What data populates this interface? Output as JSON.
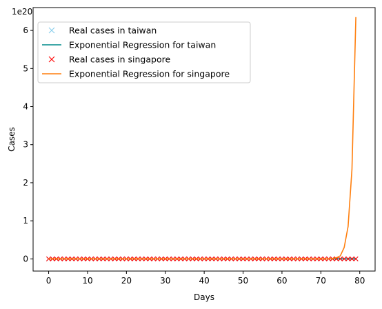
{
  "chart_data": {
    "type": "line",
    "title": "",
    "xlabel": "Days",
    "ylabel": "Cases",
    "offset_text": "1e20",
    "xlim": [
      -4,
      83.95
    ],
    "ylim": [
      -0.32,
      6.6
    ],
    "x_ticks": [
      0,
      10,
      20,
      30,
      40,
      50,
      60,
      70,
      80
    ],
    "y_ticks": [
      0,
      1,
      2,
      3,
      4,
      5,
      6
    ],
    "grid": false,
    "legend_position": "top-left",
    "series": [
      {
        "name": "Real cases in taiwan",
        "kind": "markers",
        "marker": "x",
        "color": "#87ceeb",
        "x_start": 0,
        "x_end": 79,
        "y_constant": 0
      },
      {
        "name": "Exponential Regression for taiwan",
        "kind": "line",
        "color": "#008b8b",
        "x_start": 0,
        "x_end": 79,
        "y_constant": 0
      },
      {
        "name": "Real cases in singapore",
        "kind": "markers",
        "marker": "x",
        "color": "#ff0000",
        "x_start": 0,
        "x_end": 79,
        "y_constant": 0
      },
      {
        "name": "Exponential Regression for singapore",
        "kind": "line",
        "color": "#ff7f0e",
        "x_start": 0,
        "x_end": 79,
        "tail_points": [
          [
            72,
            0
          ],
          [
            73,
            0.01
          ],
          [
            74,
            0.03
          ],
          [
            75,
            0.08
          ],
          [
            76,
            0.3
          ],
          [
            77,
            0.85
          ],
          [
            78,
            2.35
          ],
          [
            79,
            6.35
          ]
        ]
      }
    ]
  }
}
